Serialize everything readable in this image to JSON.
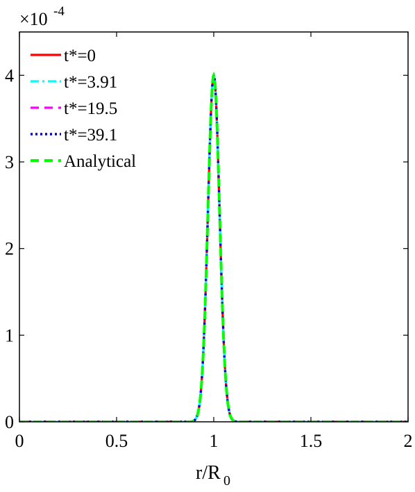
{
  "chart_data": {
    "type": "line",
    "title": "",
    "xlabel": "r/R",
    "xlabel_subscript": "0",
    "ylabel": "",
    "y_multiplier": {
      "base": "×10",
      "exponent": "-4"
    },
    "xlim": [
      0,
      2
    ],
    "ylim": [
      0,
      4.5
    ],
    "x_ticks": [
      0,
      0.5,
      1,
      1.5,
      2
    ],
    "x_tick_labels": [
      "0",
      "0.5",
      "1",
      "1.5",
      "2"
    ],
    "y_ticks": [
      0,
      1,
      2,
      3,
      4
    ],
    "y_tick_labels": [
      "0",
      "1",
      "2",
      "3",
      "4"
    ],
    "grid": false,
    "legend_position": "top-left",
    "peak": {
      "center": 1.0,
      "height": 4.0,
      "width_sigma": 0.03
    },
    "series": [
      {
        "name": "t*=0",
        "color": "#ff0000",
        "dash": "solid"
      },
      {
        "name": "t*=3.91",
        "color": "#00ffff",
        "dash": "dash-dot"
      },
      {
        "name": "t*=19.5",
        "color": "#ff00ff",
        "dash": "dashed"
      },
      {
        "name": "t*=39.1",
        "color": "#0000cc",
        "dash": "dotted"
      },
      {
        "name": "Analytical",
        "color": "#00ff00",
        "dash": "dashed"
      }
    ]
  }
}
